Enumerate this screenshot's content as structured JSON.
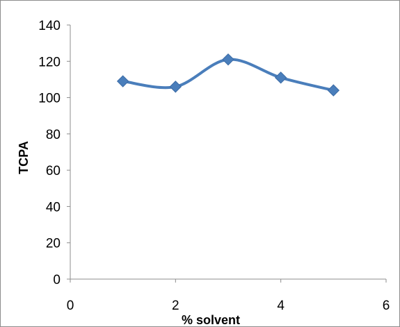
{
  "chart_data": {
    "type": "line",
    "smooth": true,
    "title": "",
    "xlabel": "% solvent",
    "ylabel": "TCPA",
    "xlim": [
      0,
      6
    ],
    "ylim": [
      0,
      140
    ],
    "xticks": [
      0,
      2,
      4,
      6
    ],
    "yticks": [
      0,
      20,
      40,
      60,
      80,
      100,
      120,
      140
    ],
    "grid": false,
    "legend": "none",
    "series": [
      {
        "color": "#4a7ebb",
        "marker": "diamond",
        "x": [
          1,
          2,
          3,
          4,
          5
        ],
        "y": [
          109,
          106,
          121,
          111,
          104
        ]
      }
    ]
  }
}
